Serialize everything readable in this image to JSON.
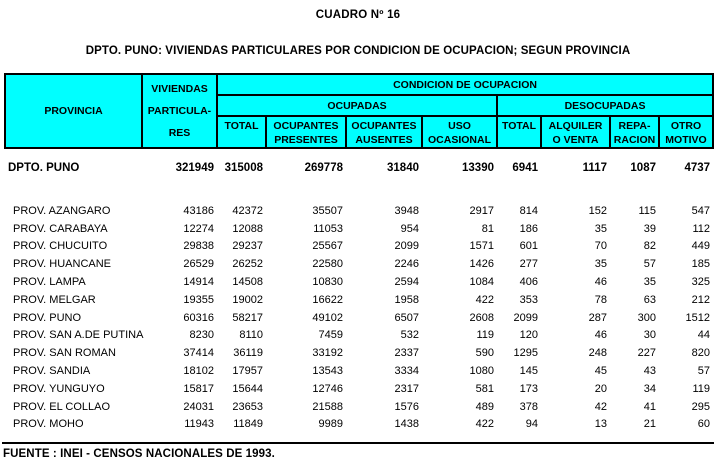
{
  "page": {
    "title": "CUADRO Nº 16",
    "subtitle": "DPTO. PUNO: VIVIENDAS PARTICULARES POR CONDICION DE OCUPACION; SEGUN PROVINCIA",
    "source_note": "FUENTE : INEI - CENSOS NACIONALES DE 1993."
  },
  "colors": {
    "header_bg": "#00ffff",
    "border": "#000000",
    "text": "#000000",
    "page_bg": "#ffffff"
  },
  "table": {
    "header": {
      "provincia": "PROVINCIA",
      "viviendas_lines": [
        "VIVIENDAS",
        "PARTICULA-",
        "RES"
      ],
      "condicion": "CONDICION DE OCUPACION",
      "ocupadas": "OCUPADAS",
      "desocupadas": "DESOCUPADAS",
      "sub_columns": [
        {
          "line1": "TOTAL",
          "line2": ""
        },
        {
          "line1": "OCUPANTES",
          "line2": "PRESENTES"
        },
        {
          "line1": "OCUPANTES",
          "line2": "AUSENTES"
        },
        {
          "line1": "USO",
          "line2": "OCASIONAL"
        },
        {
          "line1": "TOTAL",
          "line2": ""
        },
        {
          "line1": "ALQUILER",
          "line2": "O VENTA"
        },
        {
          "line1": "REPA-",
          "line2": "RACION"
        },
        {
          "line1": "OTRO",
          "line2": "MOTIVO"
        }
      ]
    },
    "total_row": {
      "label": "DPTO. PUNO",
      "values": [
        321949,
        315008,
        269778,
        31840,
        13390,
        6941,
        1117,
        1087,
        4737
      ]
    },
    "rows": [
      {
        "label": "PROV. AZANGARO",
        "values": [
          43186,
          42372,
          35507,
          3948,
          2917,
          814,
          152,
          115,
          547
        ]
      },
      {
        "label": "PROV. CARABAYA",
        "values": [
          12274,
          12088,
          11053,
          954,
          81,
          186,
          35,
          39,
          112
        ]
      },
      {
        "label": "PROV. CHUCUITO",
        "values": [
          29838,
          29237,
          25567,
          2099,
          1571,
          601,
          70,
          82,
          449
        ]
      },
      {
        "label": "PROV. HUANCANE",
        "values": [
          26529,
          26252,
          22580,
          2246,
          1426,
          277,
          35,
          57,
          185
        ]
      },
      {
        "label": "PROV. LAMPA",
        "values": [
          14914,
          14508,
          10830,
          2594,
          1084,
          406,
          46,
          35,
          325
        ]
      },
      {
        "label": "PROV. MELGAR",
        "values": [
          19355,
          19002,
          16622,
          1958,
          422,
          353,
          78,
          63,
          212
        ]
      },
      {
        "label": "PROV. PUNO",
        "values": [
          60316,
          58217,
          49102,
          6507,
          2608,
          2099,
          287,
          300,
          1512
        ]
      },
      {
        "label": "PROV. SAN A.DE PUTINA",
        "values": [
          8230,
          8110,
          7459,
          532,
          119,
          120,
          46,
          30,
          44
        ]
      },
      {
        "label": "PROV. SAN ROMAN",
        "values": [
          37414,
          36119,
          33192,
          2337,
          590,
          1295,
          248,
          227,
          820
        ]
      },
      {
        "label": "PROV. SANDIA",
        "values": [
          18102,
          17957,
          13543,
          3334,
          1080,
          145,
          45,
          43,
          57
        ]
      },
      {
        "label": "PROV. YUNGUYO",
        "values": [
          15817,
          15644,
          12746,
          2317,
          581,
          173,
          20,
          34,
          119
        ]
      },
      {
        "label": "PROV. EL COLLAO",
        "values": [
          24031,
          23653,
          21588,
          1576,
          489,
          378,
          42,
          41,
          295
        ]
      },
      {
        "label": "PROV. MOHO",
        "values": [
          11943,
          11849,
          9989,
          1438,
          422,
          94,
          13,
          21,
          60
        ]
      }
    ]
  }
}
